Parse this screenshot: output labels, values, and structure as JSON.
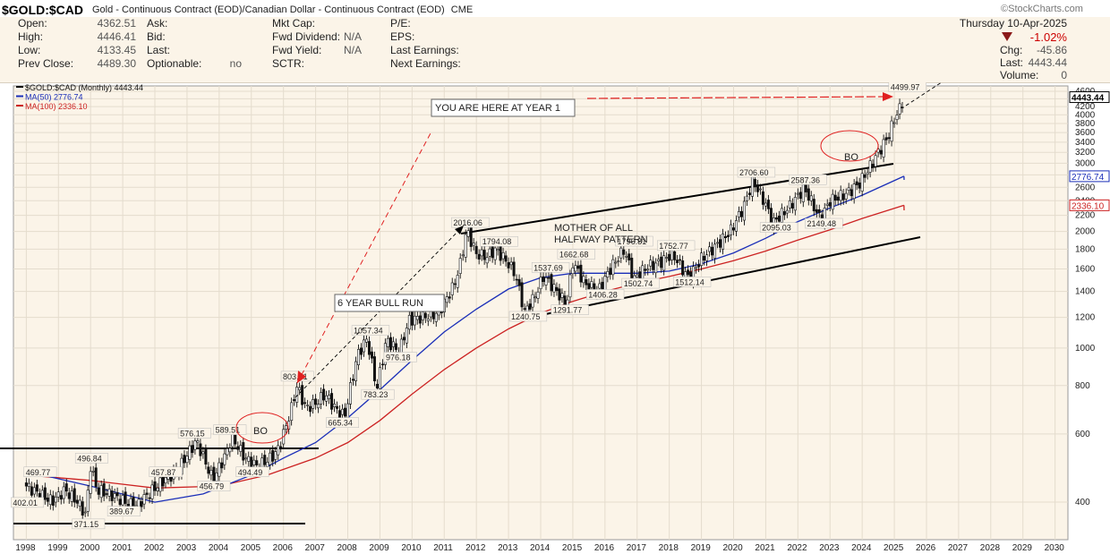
{
  "header": {
    "symbol": "$GOLD:$CAD",
    "description": "Gold - Continuous Contract (EOD)/Canadian Dollar - Continuous Contract (EOD)",
    "exchange": "CME",
    "logo_text": "StockCharts.com",
    "date": "Thursday  10-Apr-2025",
    "change_pct": "-1.02%",
    "change_label": "Chg:",
    "change_value": "-45.86",
    "last_label": "Last:",
    "last_value": "4443.44",
    "volume_label": "Volume:",
    "volume_value": "0"
  },
  "quote": {
    "col1": [
      {
        "label": "Open:",
        "value": "4362.51"
      },
      {
        "label": "High:",
        "value": "4446.41"
      },
      {
        "label": "Low:",
        "value": "4133.45"
      },
      {
        "label": "Prev Close:",
        "value": "4489.30"
      }
    ],
    "col2": [
      {
        "label": "Ask:",
        "value": ""
      },
      {
        "label": "Bid:",
        "value": ""
      },
      {
        "label": "Last:",
        "value": ""
      },
      {
        "label": "Optionable:",
        "value": "no"
      }
    ],
    "col3": [
      {
        "label": "Mkt Cap:",
        "value": ""
      },
      {
        "label": "Fwd Dividend:",
        "value": "N/A"
      },
      {
        "label": "Fwd Yield:",
        "value": "N/A"
      },
      {
        "label": "SCTR:",
        "value": ""
      }
    ],
    "col4": [
      {
        "label": "P/E:",
        "value": ""
      },
      {
        "label": "EPS:",
        "value": ""
      },
      {
        "label": "Last Earnings:",
        "value": ""
      },
      {
        "label": "Next Earnings:",
        "value": ""
      }
    ]
  },
  "colors": {
    "price": "#000000",
    "ma50": "#1a2eb8",
    "ma100": "#cc2222",
    "annotation": "#e02020",
    "background": "#ffffff",
    "panel": "#fbf4e8"
  },
  "chart_data": {
    "type": "candlestick",
    "scale": "log",
    "legend": [
      {
        "text": "$GOLD:$CAD (Monthly) 4443.44",
        "color": "#000000"
      },
      {
        "text": "MA(50) 2776.74",
        "color": "#1a2eb8"
      },
      {
        "text": "MA(100) 2336.10",
        "color": "#cc2222"
      }
    ],
    "ylim": [
      320,
      4750
    ],
    "y_ticks": [
      400,
      600,
      800,
      1000,
      1200,
      1400,
      1600,
      1800,
      2000,
      2200,
      2400,
      2600,
      2800,
      3000,
      3200,
      3400,
      3600,
      3800,
      4000,
      4200,
      4400,
      4600
    ],
    "x_ticks": [
      "1998",
      "1999",
      "2000",
      "2001",
      "2002",
      "2003",
      "2004",
      "2005",
      "2006",
      "2007",
      "2008",
      "2009",
      "2010",
      "2011",
      "2012",
      "2013",
      "2014",
      "2015",
      "2016",
      "2017",
      "2018",
      "2019",
      "2020",
      "2021",
      "2022",
      "2023",
      "2024",
      "2025",
      "2026",
      "2027",
      "2028",
      "2029",
      "2030"
    ],
    "x_range": [
      1997.6,
      2030.4
    ],
    "price_path": [
      [
        1998.0,
        440
      ],
      [
        1998.4,
        420
      ],
      [
        1998.8,
        402.01
      ],
      [
        1999.2,
        430
      ],
      [
        1999.6,
        400
      ],
      [
        1999.85,
        371.15
      ],
      [
        2000.0,
        496.84
      ],
      [
        2000.2,
        430
      ],
      [
        2000.6,
        420
      ],
      [
        2001.1,
        400
      ],
      [
        2001.4,
        389.67
      ],
      [
        2001.8,
        420
      ],
      [
        2002.3,
        457.87
      ],
      [
        2002.7,
        480
      ],
      [
        2003.0,
        530
      ],
      [
        2003.3,
        576.15
      ],
      [
        2003.6,
        500
      ],
      [
        2003.8,
        456.79
      ],
      [
        2004.2,
        530
      ],
      [
        2004.4,
        589.51
      ],
      [
        2004.8,
        520
      ],
      [
        2005.2,
        494.49
      ],
      [
        2005.6,
        520
      ],
      [
        2005.8,
        540
      ],
      [
        2006.0,
        600
      ],
      [
        2006.3,
        720
      ],
      [
        2006.4,
        803.61
      ],
      [
        2006.7,
        700
      ],
      [
        2007.0,
        720
      ],
      [
        2007.3,
        760
      ],
      [
        2007.6,
        700
      ],
      [
        2007.9,
        665.34
      ],
      [
        2008.1,
        800
      ],
      [
        2008.3,
        960
      ],
      [
        2008.6,
        1057.34
      ],
      [
        2008.9,
        783.23
      ],
      [
        2009.2,
        1050
      ],
      [
        2009.6,
        976.18
      ],
      [
        2009.9,
        1180
      ],
      [
        2010.3,
        1200
      ],
      [
        2010.8,
        1230
      ],
      [
        2011.0,
        1310
      ],
      [
        2011.3,
        1450
      ],
      [
        2011.5,
        1650
      ],
      [
        2011.7,
        2016.06
      ],
      [
        2012.0,
        1750
      ],
      [
        2012.3,
        1720
      ],
      [
        2012.6,
        1794.08
      ],
      [
        2012.9,
        1690
      ],
      [
        2013.2,
        1560
      ],
      [
        2013.5,
        1240.75
      ],
      [
        2013.8,
        1350
      ],
      [
        2014.1,
        1537.69
      ],
      [
        2014.5,
        1400
      ],
      [
        2014.8,
        1291.77
      ],
      [
        2015.0,
        1662.68
      ],
      [
        2015.4,
        1460
      ],
      [
        2015.8,
        1406.28
      ],
      [
        2016.2,
        1620
      ],
      [
        2016.6,
        1796.81
      ],
      [
        2016.9,
        1502.74
      ],
      [
        2017.3,
        1620
      ],
      [
        2017.7,
        1660
      ],
      [
        2018.1,
        1752.77
      ],
      [
        2018.6,
        1512.14
      ],
      [
        2019.0,
        1700
      ],
      [
        2019.5,
        1850
      ],
      [
        2019.9,
        2000
      ],
      [
        2020.3,
        2300
      ],
      [
        2020.6,
        2706.6
      ],
      [
        2021.0,
        2350
      ],
      [
        2021.2,
        2095.03
      ],
      [
        2021.7,
        2300
      ],
      [
        2022.2,
        2587.36
      ],
      [
        2022.7,
        2149.48
      ],
      [
        2023.0,
        2400
      ],
      [
        2023.5,
        2500
      ],
      [
        2023.9,
        2650
      ],
      [
        2024.2,
        2900
      ],
      [
        2024.5,
        3200
      ],
      [
        2024.8,
        3500
      ],
      [
        2025.0,
        3900
      ],
      [
        2025.2,
        4200
      ],
      [
        2025.3,
        4443.44
      ]
    ],
    "ma50_path": [
      [
        1998.0,
        480
      ],
      [
        2000.0,
        440
      ],
      [
        2002.0,
        400
      ],
      [
        2003.5,
        420
      ],
      [
        2005.0,
        470
      ],
      [
        2006.0,
        520
      ],
      [
        2007.0,
        570
      ],
      [
        2008.0,
        660
      ],
      [
        2009.0,
        780
      ],
      [
        2010.0,
        930
      ],
      [
        2011.0,
        1100
      ],
      [
        2012.0,
        1260
      ],
      [
        2013.0,
        1420
      ],
      [
        2014.0,
        1520
      ],
      [
        2015.0,
        1560
      ],
      [
        2016.0,
        1560
      ],
      [
        2017.0,
        1560
      ],
      [
        2018.0,
        1580
      ],
      [
        2019.0,
        1650
      ],
      [
        2020.0,
        1760
      ],
      [
        2021.0,
        1920
      ],
      [
        2022.0,
        2120
      ],
      [
        2023.0,
        2300
      ],
      [
        2024.0,
        2480
      ],
      [
        2025.3,
        2776.74
      ]
    ],
    "ma100_path": [
      [
        1998.0,
        470
      ],
      [
        2000.0,
        455
      ],
      [
        2002.0,
        435
      ],
      [
        2004.0,
        440
      ],
      [
        2005.5,
        470
      ],
      [
        2007.0,
        520
      ],
      [
        2008.0,
        570
      ],
      [
        2009.0,
        650
      ],
      [
        2010.0,
        760
      ],
      [
        2011.0,
        880
      ],
      [
        2012.0,
        1000
      ],
      [
        2013.0,
        1120
      ],
      [
        2014.0,
        1230
      ],
      [
        2015.0,
        1320
      ],
      [
        2016.0,
        1400
      ],
      [
        2017.0,
        1470
      ],
      [
        2018.0,
        1530
      ],
      [
        2019.0,
        1600
      ],
      [
        2020.0,
        1680
      ],
      [
        2021.0,
        1780
      ],
      [
        2022.0,
        1900
      ],
      [
        2023.0,
        2020
      ],
      [
        2024.0,
        2160
      ],
      [
        2025.3,
        2336.1
      ]
    ],
    "price_labels": [
      {
        "text": "402.01",
        "x": 1998.0,
        "y": 392
      },
      {
        "text": "469.77",
        "x": 1998.4,
        "y": 470
      },
      {
        "text": "496.84",
        "x": 2000.0,
        "y": 510
      },
      {
        "text": "371.15",
        "x": 1999.9,
        "y": 345
      },
      {
        "text": "389.67",
        "x": 2001.0,
        "y": 372
      },
      {
        "text": "457.87",
        "x": 2002.3,
        "y": 470
      },
      {
        "text": "576.15",
        "x": 2003.2,
        "y": 592
      },
      {
        "text": "456.79",
        "x": 2003.8,
        "y": 432
      },
      {
        "text": "589.51",
        "x": 2004.3,
        "y": 604
      },
      {
        "text": "494.49",
        "x": 2005.0,
        "y": 470
      },
      {
        "text": "803.61",
        "x": 2006.4,
        "y": 830
      },
      {
        "text": "665.34",
        "x": 2007.8,
        "y": 630
      },
      {
        "text": "1057.34",
        "x": 2008.6,
        "y": 1090
      },
      {
        "text": "783.23",
        "x": 2008.9,
        "y": 745
      },
      {
        "text": "976.18",
        "x": 2009.6,
        "y": 930
      },
      {
        "text": "2016.06",
        "x": 2011.7,
        "y": 2070
      },
      {
        "text": "1794.08",
        "x": 2012.6,
        "y": 1850
      },
      {
        "text": "1240.75",
        "x": 2013.5,
        "y": 1185
      },
      {
        "text": "1537.69",
        "x": 2014.2,
        "y": 1585
      },
      {
        "text": "1291.77",
        "x": 2014.8,
        "y": 1232
      },
      {
        "text": "1662.68",
        "x": 2015.0,
        "y": 1715
      },
      {
        "text": "1406.28",
        "x": 2015.9,
        "y": 1350
      },
      {
        "text": "1796.81",
        "x": 2016.8,
        "y": 1852
      },
      {
        "text": "1502.74",
        "x": 2017.0,
        "y": 1442
      },
      {
        "text": "1752.77",
        "x": 2018.1,
        "y": 1805
      },
      {
        "text": "1512.14",
        "x": 2018.6,
        "y": 1455
      },
      {
        "text": "2706.60",
        "x": 2020.6,
        "y": 2790
      },
      {
        "text": "2095.03",
        "x": 2021.3,
        "y": 2010
      },
      {
        "text": "2587.36",
        "x": 2022.2,
        "y": 2670
      },
      {
        "text": "2149.48",
        "x": 2022.7,
        "y": 2060
      },
      {
        "text": "4499.97",
        "x": 2025.3,
        "y": 4640
      }
    ],
    "annotations": [
      {
        "text": "YOU ARE HERE AT YEAR 1",
        "kind": "box"
      },
      {
        "text": "6 YEAR BULL RUN",
        "kind": "box"
      },
      {
        "text": "MOTHER OF ALL",
        "kind": "label"
      },
      {
        "text": "HALFWAY PATTERN",
        "kind": "label"
      },
      {
        "text": "BO",
        "kind": "circle"
      },
      {
        "text": "BO",
        "kind": "circle"
      }
    ],
    "right_axis_tags": [
      {
        "text": "4443.44",
        "value": 4443.44,
        "color": "#000000"
      },
      {
        "text": "2776.74",
        "value": 2776.74,
        "color": "#1a2eb8"
      },
      {
        "text": "2336.10",
        "value": 2336.1,
        "color": "#cc2222"
      }
    ],
    "grid": true
  }
}
